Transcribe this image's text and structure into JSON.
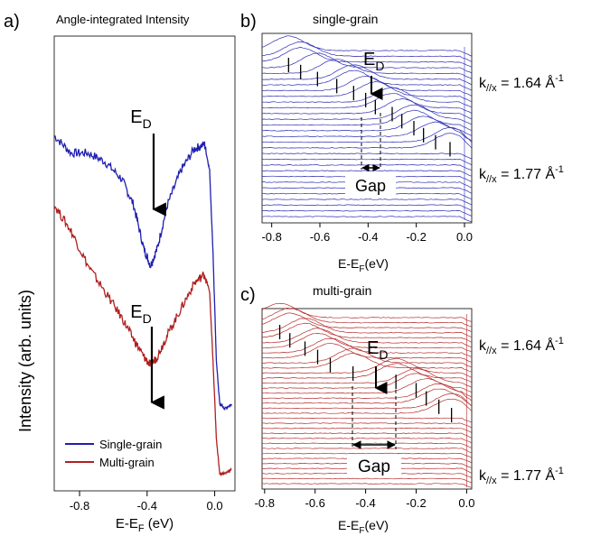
{
  "chart_data": [
    {
      "panel": "a)",
      "type": "line",
      "title": "Angle-integrated Intensity",
      "xlabel_main": "E-E",
      "xlabel_sub": "F",
      "xlabel_tail": " (eV)",
      "ylabel": "Intensity (arb. units)",
      "xlim": [
        -0.95,
        0.12
      ],
      "xticks": [
        -0.8,
        -0.4,
        0.0
      ],
      "xtick_labels": [
        "-0.8",
        "-0.4",
        "0.0"
      ],
      "annotations": [
        {
          "text": "E",
          "sub": "D",
          "x": -0.37,
          "series": "Single-grain"
        },
        {
          "text": "E",
          "sub": "D",
          "x": -0.37,
          "series": "Multi-grain"
        }
      ],
      "legend_position": "bottom-left",
      "series": [
        {
          "name": "Single-grain",
          "color": "#1f1fb0",
          "x": [
            -0.95,
            -0.85,
            -0.75,
            -0.65,
            -0.55,
            -0.48,
            -0.42,
            -0.38,
            -0.34,
            -0.28,
            -0.2,
            -0.12,
            -0.06,
            -0.03,
            -0.01,
            0.01,
            0.03,
            0.06,
            0.1
          ],
          "y": [
            0.82,
            0.78,
            0.78,
            0.76,
            0.72,
            0.66,
            0.56,
            0.52,
            0.56,
            0.66,
            0.74,
            0.79,
            0.8,
            0.74,
            0.55,
            0.3,
            0.2,
            0.19,
            0.2
          ]
        },
        {
          "name": "Multi-grain",
          "color": "#b01f1f",
          "x": [
            -0.95,
            -0.85,
            -0.75,
            -0.65,
            -0.55,
            -0.48,
            -0.42,
            -0.38,
            -0.34,
            -0.28,
            -0.2,
            -0.12,
            -0.06,
            -0.03,
            -0.01,
            0.01,
            0.03,
            0.06,
            0.1
          ],
          "y": [
            0.66,
            0.6,
            0.52,
            0.46,
            0.4,
            0.35,
            0.31,
            0.29,
            0.31,
            0.36,
            0.42,
            0.48,
            0.5,
            0.46,
            0.3,
            0.12,
            0.04,
            0.04,
            0.05
          ]
        }
      ]
    },
    {
      "panel": "b)",
      "type": "line",
      "title": "single-grain",
      "xlabel_main": "E-E",
      "xlabel_sub": "F",
      "xlabel_tail": "(eV)",
      "xlim": [
        -0.84,
        0.03
      ],
      "xticks": [
        -0.8,
        -0.6,
        -0.4,
        -0.2,
        0.0
      ],
      "xtick_labels": [
        "-0.8",
        "-0.6",
        "-0.4",
        "-0.2",
        "0.0"
      ],
      "color": "#2a2ab5",
      "n_curves": 30,
      "peak_energies": [
        -0.73,
        -0.68,
        -0.61,
        -0.53,
        -0.46,
        -0.41,
        -0.37,
        -0.3,
        -0.26,
        -0.21,
        -0.17,
        -0.12,
        -0.06
      ],
      "dirac_point": {
        "text": "E",
        "sub": "D",
        "x": -0.38
      },
      "gap": {
        "label": "Gap",
        "from": -0.4,
        "to": -0.34
      },
      "labels": [
        {
          "k": "k",
          "sub": "//x",
          "rest": " = 1.64 Å",
          "sup": "-1"
        },
        {
          "k": "k",
          "sub": "//x",
          "rest": " = 1.77 Å",
          "sup": "-1"
        }
      ]
    },
    {
      "panel": "c)",
      "type": "line",
      "title": "multi-grain",
      "xlabel_main": "E-E",
      "xlabel_sub": "F",
      "xlabel_tail": "(eV)",
      "xlim": [
        -0.81,
        0.02
      ],
      "xticks": [
        -0.8,
        -0.6,
        -0.4,
        -0.2,
        0.0
      ],
      "xtick_labels": [
        "-0.8",
        "-0.6",
        "-0.4",
        "-0.2",
        "0.0"
      ],
      "color": "#b52a2a",
      "n_curves": 34,
      "peak_energies": [
        -0.74,
        -0.7,
        -0.64,
        -0.59,
        -0.54,
        -0.45,
        -0.28,
        -0.2,
        -0.16,
        -0.11,
        -0.06
      ],
      "dirac_point": {
        "text": "E",
        "sub": "D",
        "x": -0.36
      },
      "gap": {
        "label": "Gap",
        "from": -0.45,
        "to": -0.28
      },
      "labels": [
        {
          "k": "k",
          "sub": "//x",
          "rest": " = 1.64 Å",
          "sup": "-1"
        },
        {
          "k": "k",
          "sub": "//x",
          "rest": " = 1.77 Å",
          "sup": "-1"
        }
      ]
    }
  ]
}
